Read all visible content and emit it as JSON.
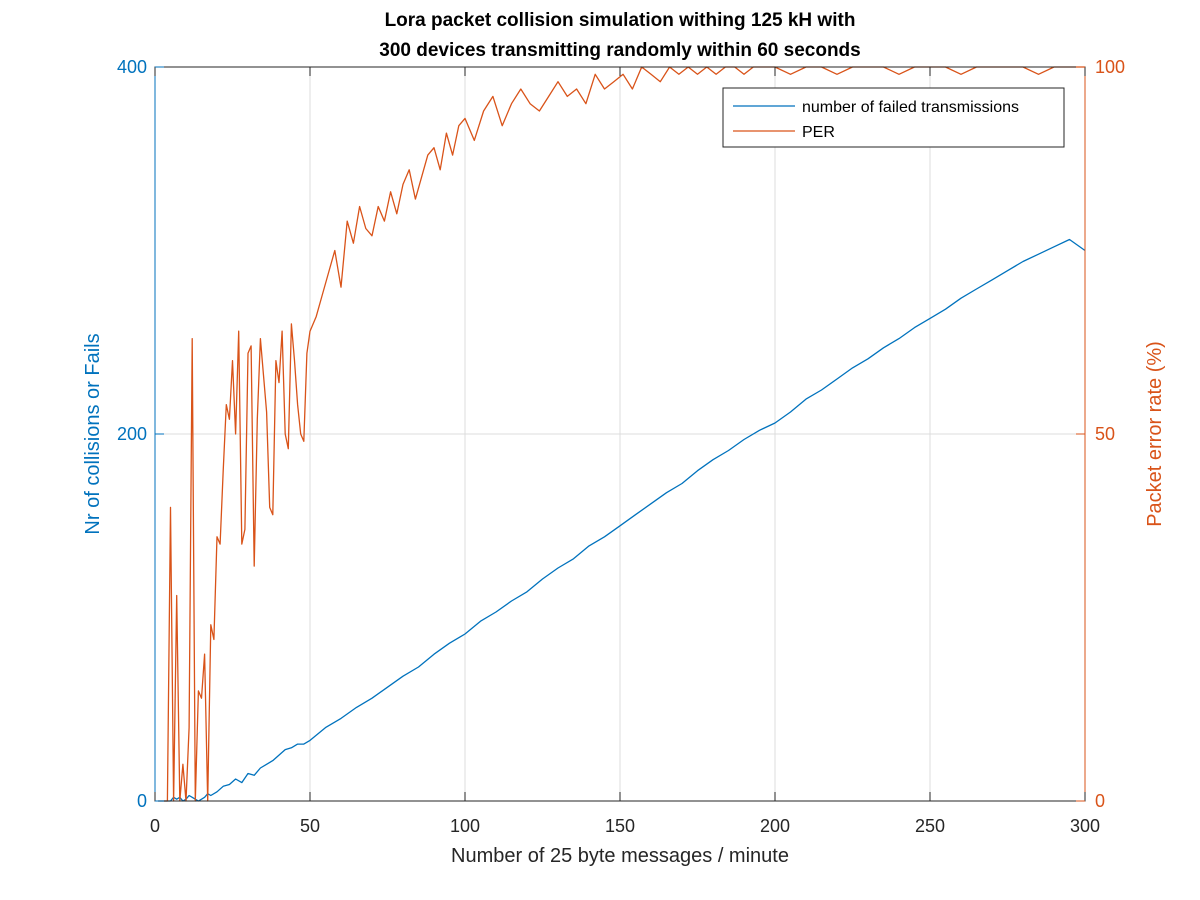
{
  "chart_data": {
    "type": "line",
    "title_lines": [
      "Lora packet collision simulation withing 125 kH with",
      "300 devices transmitting randomly within 60 seconds"
    ],
    "xlabel": "Number of 25 byte  messages / minute",
    "ylabel_left": "Nr of collisions or Fails",
    "ylabel_right": "Packet error rate (%)",
    "xlim": [
      0,
      300
    ],
    "ylim_left": [
      0,
      400
    ],
    "ylim_right": [
      0,
      100
    ],
    "xticks": [
      0,
      50,
      100,
      150,
      200,
      250,
      300
    ],
    "yticks_left": [
      0,
      200,
      400
    ],
    "yticks_right": [
      0,
      50,
      100
    ],
    "grid": true,
    "legend_position": "top-right",
    "colors": {
      "left": "#0072BD",
      "right": "#D95319"
    },
    "series": [
      {
        "name": "number of failed transmissions",
        "axis": "left",
        "color": "#0072BD",
        "x": [
          1,
          5,
          6,
          7,
          8,
          9,
          10,
          11,
          12,
          13,
          14,
          15,
          16,
          17,
          18,
          20,
          22,
          24,
          26,
          28,
          30,
          32,
          34,
          36,
          38,
          40,
          42,
          44,
          46,
          48,
          50,
          55,
          60,
          65,
          70,
          75,
          80,
          85,
          90,
          95,
          100,
          105,
          110,
          115,
          120,
          125,
          130,
          135,
          140,
          145,
          150,
          155,
          160,
          165,
          170,
          175,
          180,
          185,
          190,
          195,
          200,
          205,
          210,
          215,
          220,
          225,
          230,
          235,
          240,
          245,
          250,
          255,
          260,
          265,
          270,
          275,
          280,
          285,
          290,
          295,
          300
        ],
        "values": [
          0,
          0,
          2,
          1,
          2,
          0,
          1,
          3,
          2,
          1,
          0,
          1,
          2,
          4,
          3,
          5,
          8,
          9,
          12,
          10,
          15,
          14,
          18,
          20,
          22,
          25,
          28,
          29,
          31,
          31,
          33,
          40,
          45,
          51,
          56,
          62,
          68,
          73,
          80,
          86,
          91,
          98,
          103,
          109,
          114,
          121,
          127,
          132,
          139,
          144,
          150,
          156,
          162,
          168,
          173,
          180,
          186,
          191,
          197,
          202,
          206,
          212,
          219,
          224,
          230,
          236,
          241,
          247,
          252,
          258,
          263,
          268,
          274,
          279,
          284,
          289,
          294,
          298,
          302,
          306,
          300
        ]
      },
      {
        "name": "PER",
        "axis": "right",
        "color": "#D95319",
        "x": [
          1,
          4,
          5,
          6,
          7,
          8,
          9,
          10,
          11,
          12,
          13,
          14,
          15,
          16,
          17,
          18,
          19,
          20,
          21,
          22,
          23,
          24,
          25,
          26,
          27,
          28,
          29,
          30,
          31,
          32,
          33,
          34,
          35,
          36,
          37,
          38,
          39,
          40,
          41,
          42,
          43,
          44,
          45,
          46,
          47,
          48,
          49,
          50,
          52,
          54,
          56,
          58,
          60,
          62,
          64,
          66,
          68,
          70,
          72,
          74,
          76,
          78,
          80,
          82,
          84,
          86,
          88,
          90,
          92,
          94,
          96,
          98,
          100,
          103,
          106,
          109,
          112,
          115,
          118,
          121,
          124,
          127,
          130,
          133,
          136,
          139,
          142,
          145,
          148,
          151,
          154,
          157,
          160,
          163,
          166,
          169,
          172,
          175,
          178,
          181,
          184,
          187,
          190,
          193,
          196,
          200,
          205,
          210,
          215,
          220,
          225,
          230,
          235,
          240,
          245,
          250,
          255,
          260,
          265,
          270,
          275,
          280,
          285,
          290,
          295,
          300
        ],
        "values": [
          0,
          0,
          40,
          0,
          28,
          0,
          5,
          0,
          10,
          63,
          0,
          15,
          14,
          20,
          0,
          24,
          22,
          36,
          35,
          45,
          54,
          52,
          60,
          50,
          64,
          35,
          37,
          61,
          62,
          32,
          52,
          63,
          58,
          53,
          40,
          39,
          60,
          57,
          64,
          50,
          48,
          65,
          60,
          54,
          50,
          49,
          61,
          64,
          66,
          69,
          72,
          75,
          70,
          79,
          76,
          81,
          78,
          77,
          81,
          79,
          83,
          80,
          84,
          86,
          82,
          85,
          88,
          89,
          86,
          91,
          88,
          92,
          93,
          90,
          94,
          96,
          92,
          95,
          97,
          95,
          94,
          96,
          98,
          96,
          97,
          95,
          99,
          97,
          98,
          99,
          97,
          100,
          99,
          98,
          100,
          99,
          100,
          99,
          100,
          99,
          100,
          100,
          99,
          100,
          100,
          100,
          99,
          100,
          100,
          99,
          100,
          100,
          100,
          99,
          100,
          100,
          100,
          99,
          100,
          100,
          100,
          100,
          99,
          100,
          100,
          100
        ]
      }
    ]
  }
}
